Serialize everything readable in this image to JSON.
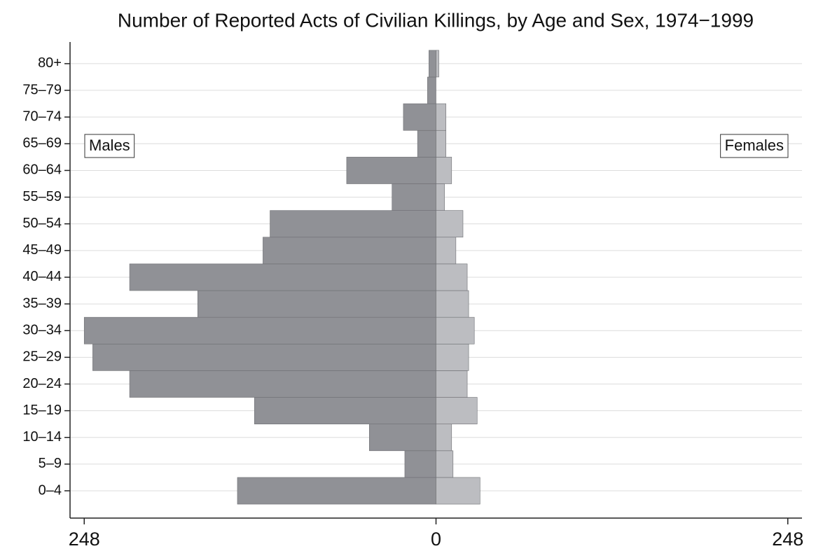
{
  "chart_data": {
    "type": "pyramid",
    "title": "Number of Reported Acts of Civilian Killings, by Age and Sex, 1974−1999",
    "categories": [
      "0–4",
      "5–9",
      "10–14",
      "15–19",
      "20–24",
      "25–29",
      "30–34",
      "35–39",
      "40–44",
      "45–49",
      "50–54",
      "55–59",
      "60–64",
      "65–69",
      "70–74",
      "75–79",
      "80+"
    ],
    "series": [
      {
        "name": "Males",
        "color": "#909196",
        "values": [
          -140,
          -22,
          -47,
          -128,
          -216,
          -242,
          -248,
          -168,
          -216,
          -122,
          -117,
          -31,
          -63,
          -13,
          -23,
          -6,
          -5
        ]
      },
      {
        "name": "Females",
        "color": "#bcbdc1",
        "values": [
          31,
          12,
          11,
          29,
          22,
          23,
          27,
          23,
          22,
          14,
          19,
          6,
          11,
          7,
          7,
          0,
          2
        ]
      }
    ],
    "xlim": [
      -258,
      258
    ],
    "xticks": [
      {
        "value": -248,
        "label": "248"
      },
      0,
      {
        "value": 248,
        "label": "248"
      }
    ],
    "grid": true
  }
}
